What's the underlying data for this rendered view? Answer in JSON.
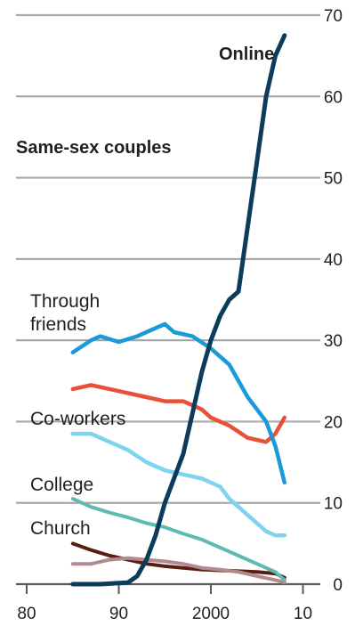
{
  "chart_data": {
    "type": "line",
    "title": "",
    "subtitle": "Same-sex couples",
    "xlabel": "",
    "ylabel": "",
    "xlim": [
      1980,
      2010
    ],
    "ylim": [
      0,
      70
    ],
    "x_ticks": [
      1980,
      1990,
      2000,
      2010
    ],
    "x_tick_labels": [
      "80",
      "90",
      "2000",
      "10"
    ],
    "y_ticks": [
      0,
      10,
      20,
      30,
      40,
      50,
      60,
      70
    ],
    "y_tick_labels": [
      "0",
      "10",
      "20",
      "30",
      "40",
      "50",
      "60",
      "70"
    ],
    "grid": true,
    "series": [
      {
        "name": "Online",
        "color": "#0c3c5c",
        "width": 5,
        "points": [
          [
            1985,
            0
          ],
          [
            1988,
            0
          ],
          [
            1991,
            0.2
          ],
          [
            1992,
            1
          ],
          [
            1993,
            3
          ],
          [
            1994,
            6
          ],
          [
            1995,
            10
          ],
          [
            1996,
            13
          ],
          [
            1997,
            16
          ],
          [
            1998,
            21
          ],
          [
            1999,
            26
          ],
          [
            2000,
            30
          ],
          [
            2001,
            33
          ],
          [
            2002,
            35
          ],
          [
            2003,
            36
          ],
          [
            2004,
            44
          ],
          [
            2005,
            52
          ],
          [
            2006,
            60
          ],
          [
            2007,
            65
          ],
          [
            2008,
            67.5
          ]
        ]
      },
      {
        "name": "Through friends",
        "color": "#1a9ad6",
        "width": 4.5,
        "points": [
          [
            1985,
            28.5
          ],
          [
            1987,
            30
          ],
          [
            1988,
            30.5
          ],
          [
            1990,
            29.8
          ],
          [
            1992,
            30.5
          ],
          [
            1994,
            31.5
          ],
          [
            1995,
            32
          ],
          [
            1996,
            31
          ],
          [
            1998,
            30.5
          ],
          [
            2000,
            29
          ],
          [
            2002,
            27
          ],
          [
            2004,
            23
          ],
          [
            2006,
            20
          ],
          [
            2007,
            17
          ],
          [
            2008,
            12.5
          ]
        ]
      },
      {
        "name": "",
        "color": "#e8503a",
        "width": 4.5,
        "points": [
          [
            1985,
            24
          ],
          [
            1987,
            24.5
          ],
          [
            1989,
            24
          ],
          [
            1991,
            23.5
          ],
          [
            1993,
            23
          ],
          [
            1995,
            22.5
          ],
          [
            1997,
            22.5
          ],
          [
            1999,
            21.5
          ],
          [
            2000,
            20.5
          ],
          [
            2002,
            19.5
          ],
          [
            2004,
            18
          ],
          [
            2006,
            17.5
          ],
          [
            2007,
            18.5
          ],
          [
            2008,
            20.5
          ]
        ]
      },
      {
        "name": "Co-workers",
        "color": "#7ed3f0",
        "width": 4.5,
        "points": [
          [
            1985,
            18.5
          ],
          [
            1987,
            18.5
          ],
          [
            1989,
            17.5
          ],
          [
            1991,
            16.5
          ],
          [
            1993,
            15
          ],
          [
            1995,
            14
          ],
          [
            1997,
            13.5
          ],
          [
            1999,
            13
          ],
          [
            2001,
            12
          ],
          [
            2002,
            10.5
          ],
          [
            2004,
            8.5
          ],
          [
            2006,
            6.5
          ],
          [
            2007,
            6
          ],
          [
            2008,
            6
          ]
        ]
      },
      {
        "name": "College",
        "color": "#5fbab3",
        "width": 4,
        "points": [
          [
            1985,
            10.5
          ],
          [
            1987,
            9.5
          ],
          [
            1989,
            8.8
          ],
          [
            1991,
            8.2
          ],
          [
            1993,
            7.5
          ],
          [
            1995,
            7
          ],
          [
            1997,
            6.2
          ],
          [
            1999,
            5.5
          ],
          [
            2001,
            4.5
          ],
          [
            2003,
            3.5
          ],
          [
            2005,
            2.5
          ],
          [
            2007,
            1.5
          ],
          [
            2008,
            0.5
          ]
        ]
      },
      {
        "name": "Church",
        "color": "#b08a8e",
        "width": 4,
        "points": [
          [
            1985,
            2.5
          ],
          [
            1987,
            2.5
          ],
          [
            1989,
            3
          ],
          [
            1991,
            3.2
          ],
          [
            1993,
            3
          ],
          [
            1995,
            2.8
          ],
          [
            1997,
            2.5
          ],
          [
            1999,
            2
          ],
          [
            2001,
            1.8
          ],
          [
            2003,
            1.5
          ],
          [
            2005,
            1
          ],
          [
            2007,
            0.5
          ],
          [
            2008,
            0.2
          ]
        ]
      },
      {
        "name": "",
        "color": "#5b1d12",
        "width": 4,
        "points": [
          [
            1985,
            5
          ],
          [
            1987,
            4.2
          ],
          [
            1989,
            3.5
          ],
          [
            1991,
            3
          ],
          [
            1993,
            2.5
          ],
          [
            1995,
            2.2
          ],
          [
            1997,
            2
          ],
          [
            1999,
            1.8
          ],
          [
            2001,
            1.7
          ],
          [
            2003,
            1.6
          ],
          [
            2005,
            1.5
          ],
          [
            2007,
            1.3
          ],
          [
            2008,
            0.8
          ]
        ]
      }
    ]
  }
}
